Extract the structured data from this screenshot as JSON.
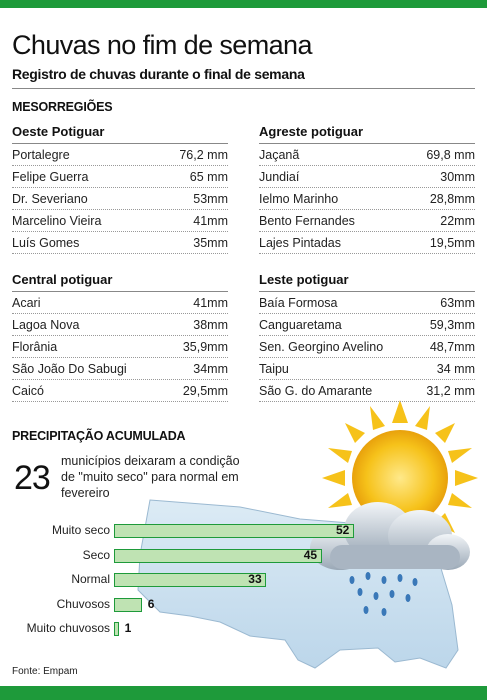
{
  "header": {
    "title": "Chuvas no fim de semana",
    "subtitle": "Registro de chuvas durante o final de semana"
  },
  "mesorregioes": {
    "heading": "MESORREGIÕES",
    "oeste": {
      "title": "Oeste Potiguar",
      "rows": [
        {
          "city": "Portalegre",
          "value": "76,2 mm"
        },
        {
          "city": "Felipe Guerra",
          "value": "65 mm"
        },
        {
          "city": "Dr. Severiano",
          "value": "53mm"
        },
        {
          "city": "Marcelino Vieira",
          "value": "41mm"
        },
        {
          "city": "Luís Gomes",
          "value": "35mm"
        }
      ]
    },
    "agreste": {
      "title": "Agreste potiguar",
      "rows": [
        {
          "city": "Jaçanã",
          "value": "69,8 mm"
        },
        {
          "city": "Jundiaí",
          "value": "30mm"
        },
        {
          "city": "Ielmo Marinho",
          "value": "28,8mm"
        },
        {
          "city": "Bento Fernandes",
          "value": "22mm"
        },
        {
          "city": "Lajes Pintadas",
          "value": "19,5mm"
        }
      ]
    },
    "central": {
      "title": "Central potiguar",
      "rows": [
        {
          "city": "Acari",
          "value": "41mm"
        },
        {
          "city": "Lagoa Nova",
          "value": "38mm"
        },
        {
          "city": "Florânia",
          "value": "35,9mm"
        },
        {
          "city": "São João Do Sabugi",
          "value": "34mm"
        },
        {
          "city": "Caicó",
          "value": "29,5mm"
        }
      ]
    },
    "leste": {
      "title": "Leste potiguar",
      "rows": [
        {
          "city": "Baía Formosa",
          "value": "63mm"
        },
        {
          "city": "Canguaretama",
          "value": "59,3mm"
        },
        {
          "city": "Sen. Georgino Avelino",
          "value": "48,7mm"
        },
        {
          "city": "Taipu",
          "value": "34 mm"
        },
        {
          "city": "São G. do Amarante",
          "value": "31,2 mm"
        }
      ]
    }
  },
  "precipitacao": {
    "heading": "PRECIPITAÇÃO ACUMULADA",
    "big_number": "23",
    "description": "municípios deixaram a condição de \"muito seco\" para normal em fevereiro"
  },
  "chart_data": {
    "type": "bar",
    "orientation": "horizontal",
    "categories": [
      "Muito seco",
      "Seco",
      "Normal",
      "Chuvosos",
      "Muito chuvosos"
    ],
    "values": [
      52,
      45,
      33,
      6,
      1
    ],
    "title": "",
    "xlabel": "",
    "ylabel": "",
    "xlim": [
      0,
      52
    ],
    "grid": false,
    "bar_color": "#bfe3b3",
    "border_color": "#1e9a3a"
  },
  "footer": {
    "source": "Fonte: Empam"
  },
  "colors": {
    "accent_green": "#1e9a3a",
    "map_blue": "#cfe3f1",
    "sun_yellow": "#f6c21a"
  }
}
